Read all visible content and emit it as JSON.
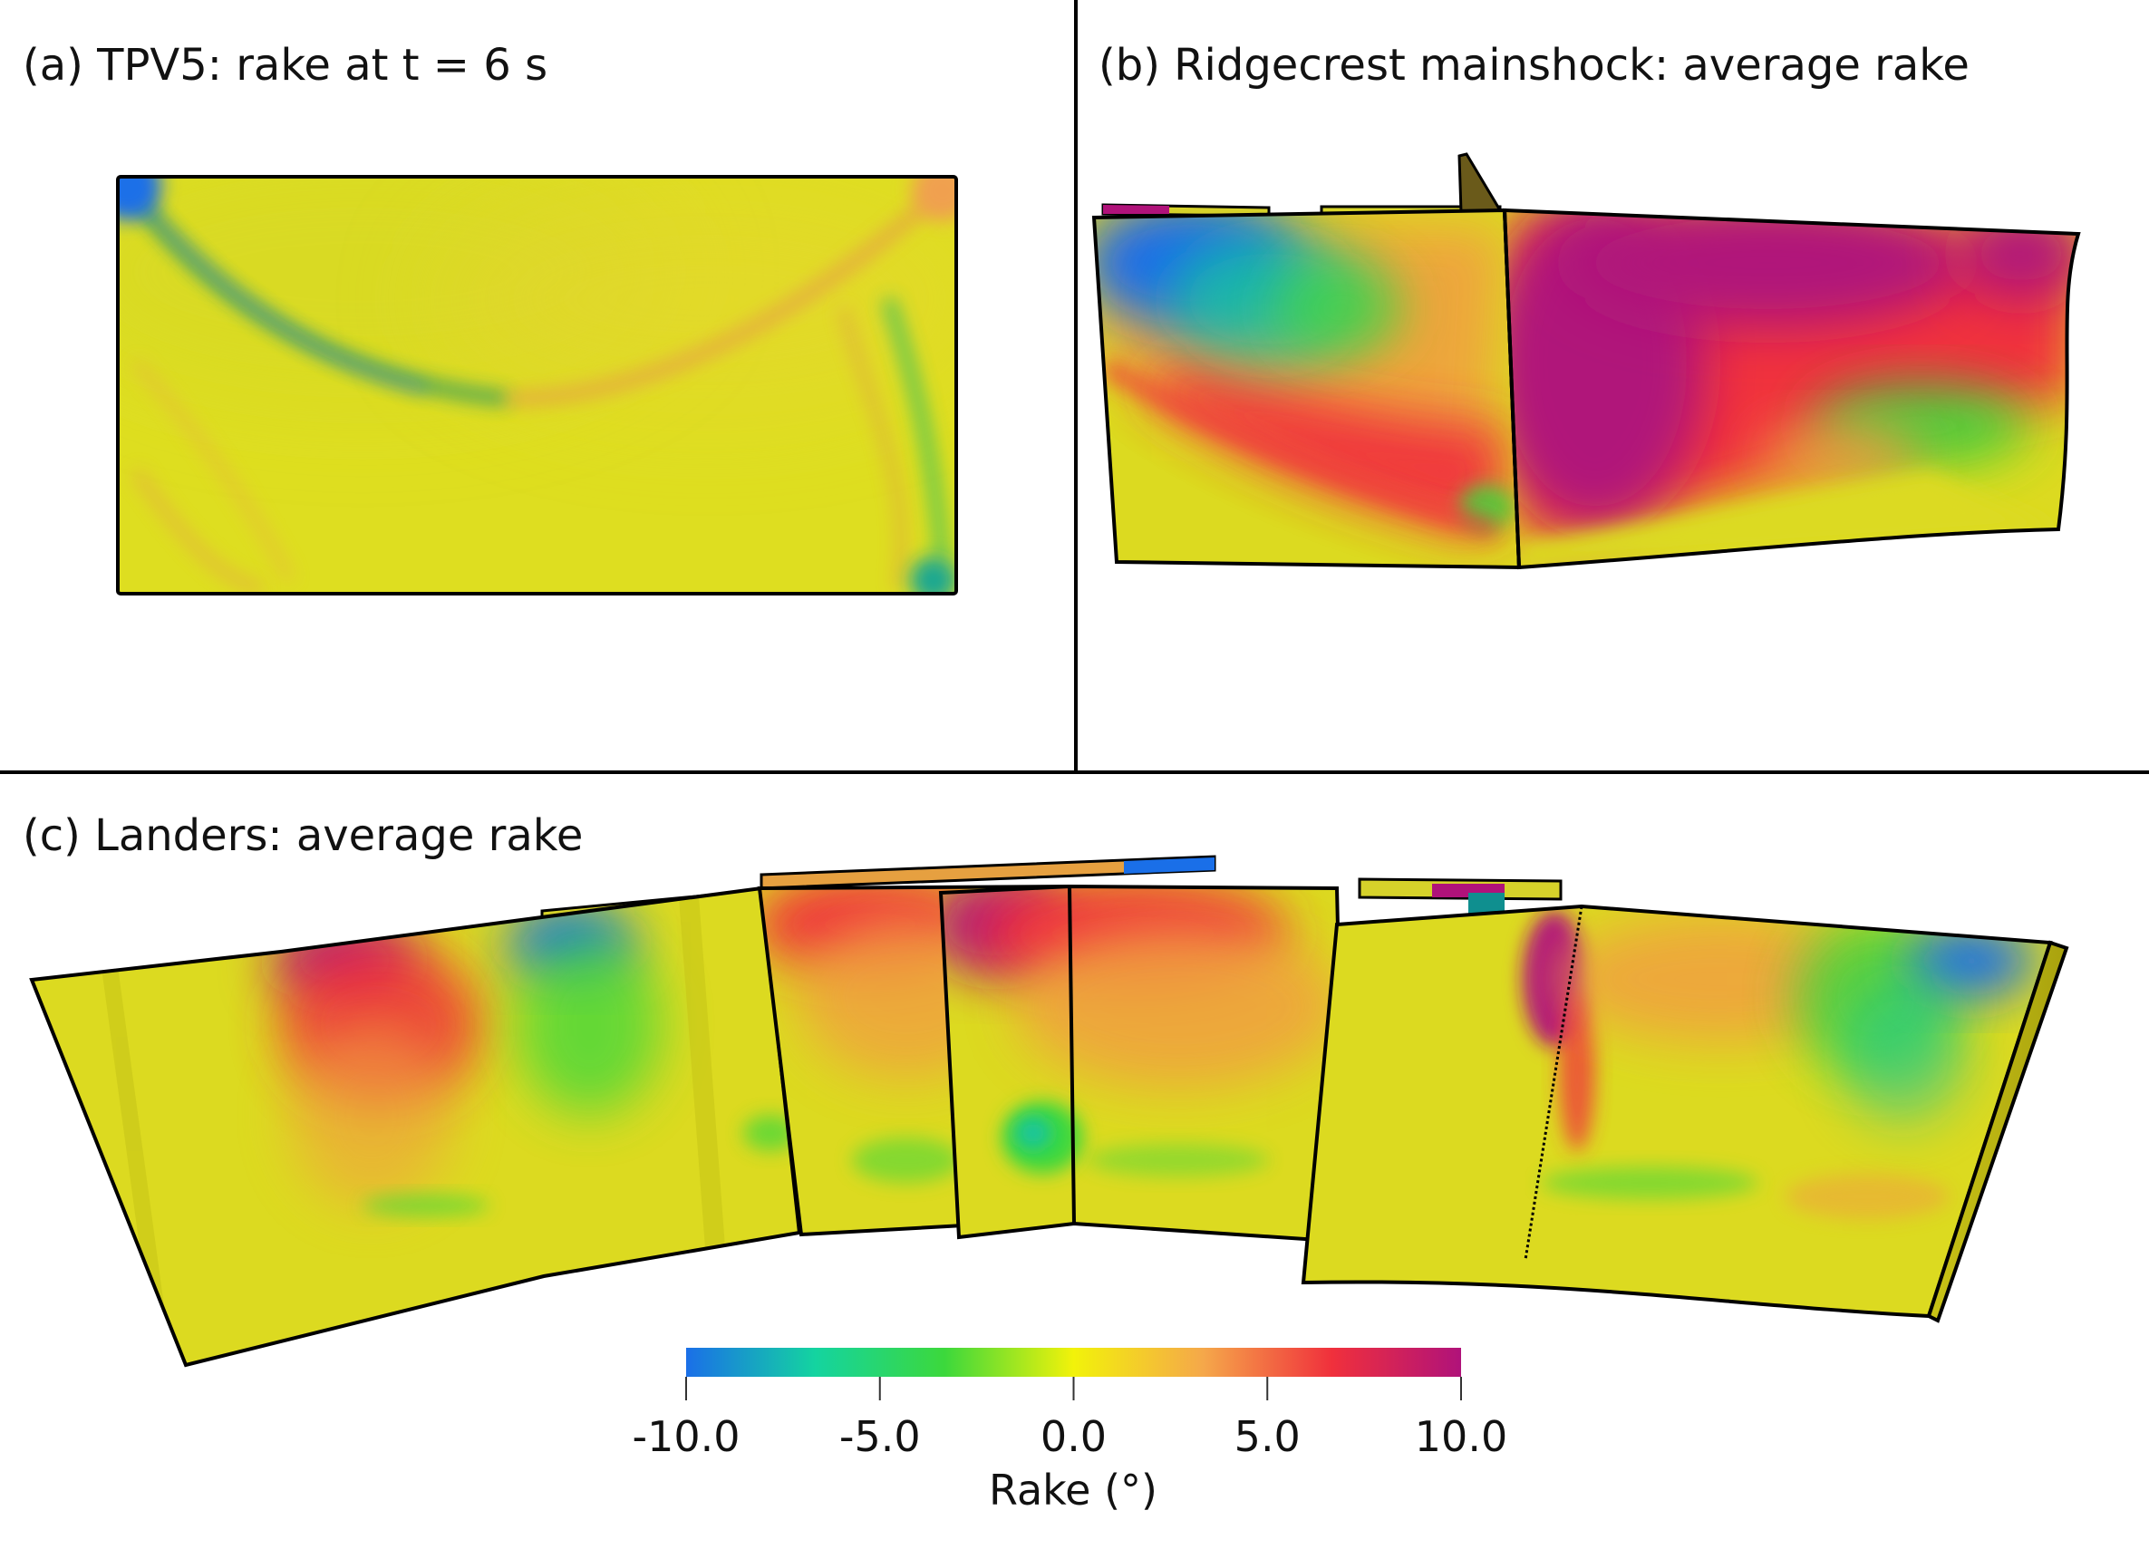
{
  "panels": {
    "a": {
      "title": "(a) TPV5: rake at t = 6 s"
    },
    "b": {
      "title": "(b) Ridgecrest mainshock: average rake"
    },
    "c": {
      "title": "(c) Landers: average rake"
    }
  },
  "colorbar": {
    "title": "Rake (°)",
    "min": -10.0,
    "max": 10.0,
    "ticks": [
      {
        "value": -10.0,
        "label": "-10.0"
      },
      {
        "value": -5.0,
        "label": "-5.0"
      },
      {
        "value": 0.0,
        "label": "0.0"
      },
      {
        "value": 5.0,
        "label": "5.0"
      },
      {
        "value": 10.0,
        "label": "10.0"
      }
    ],
    "stops": [
      "#1a6fe8",
      "#14d4a0",
      "#3cd83c",
      "#f2f20a",
      "#f5a84a",
      "#f0303c",
      "#b0127a"
    ]
  },
  "colors": {
    "base": "#e0de1e",
    "blue": "#1a6fe8",
    "green": "#3cd83c",
    "orange": "#f0a040",
    "red": "#f0303c",
    "magenta": "#b0127a",
    "outline": "#000000"
  }
}
